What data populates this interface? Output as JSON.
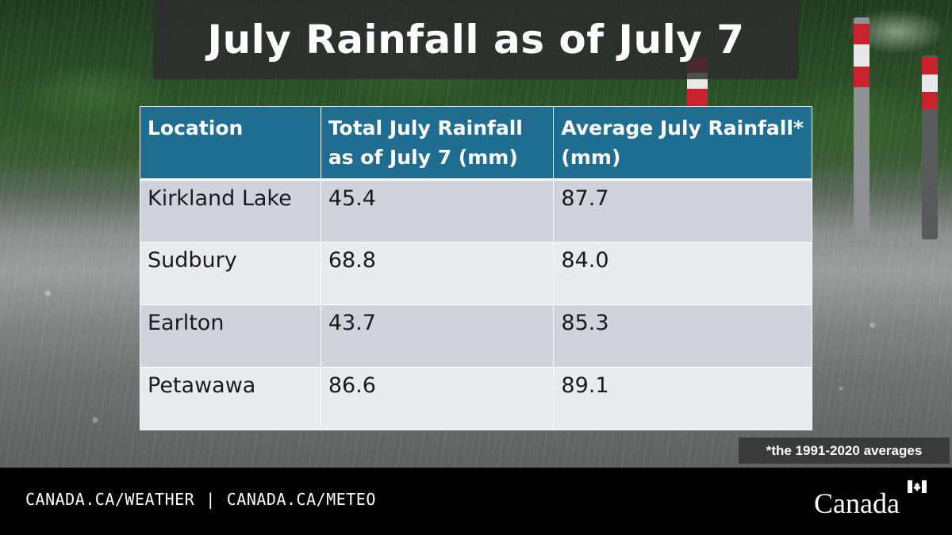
{
  "title": "July Rainfall as of July 7",
  "table": {
    "headers": [
      "Location",
      "Total July Rainfall as of July 7 (mm)",
      "Average July Rainfall* (mm)"
    ],
    "rows": [
      {
        "location": "Kirkland Lake",
        "total": "45.4",
        "average": "87.7"
      },
      {
        "location": "Sudbury",
        "total": "68.8",
        "average": "84.0"
      },
      {
        "location": "Earlton",
        "total": "43.7",
        "average": "85.3"
      },
      {
        "location": "Petawawa",
        "total": "86.6",
        "average": "89.1"
      }
    ]
  },
  "footnote": "*the 1991-2020 averages",
  "footer": {
    "link_en": "CANADA.CA/WEATHER",
    "separator": "|",
    "link_fr": "CANADA.CA/METEO",
    "wordmark": "Canada"
  },
  "colors": {
    "header_bg": "#1f6e92",
    "row_odd": "#cfd4dc",
    "row_even": "#e8ebf0",
    "footer_bg": "#000000"
  },
  "icons": {
    "flag": "canada-flag-icon"
  }
}
